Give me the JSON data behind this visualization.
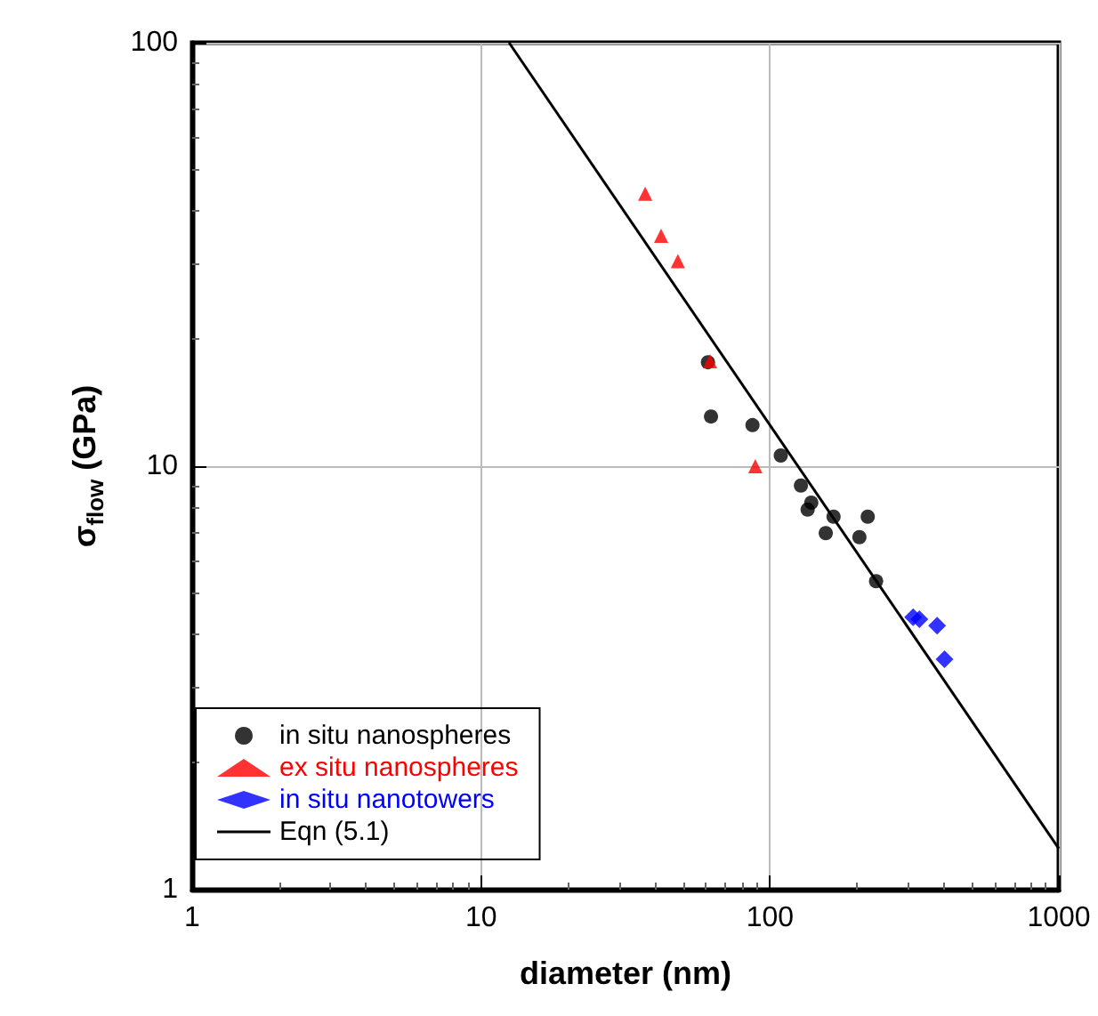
{
  "chart_data": {
    "type": "scatter",
    "xlabel": "diameter (nm)",
    "ylabel": "σ$_{flow}$ (GPa)",
    "log": "xy",
    "grid": true,
    "legend": "bottom left",
    "xlim": [
      1,
      1000
    ],
    "xticks": [
      1,
      10,
      100,
      1000
    ],
    "ylim": [
      1,
      100
    ],
    "yticks": [
      1,
      10,
      100
    ],
    "series": [
      {
        "name": "in situ nanospheres",
        "color": "#000000",
        "marker": "circle",
        "x": [
          61,
          62.5,
          87,
          109,
          128,
          135,
          139,
          156,
          166,
          204,
          218,
          233
        ],
        "values": [
          17.6,
          13.1,
          12.5,
          10.6,
          9.0,
          7.9,
          8.2,
          6.95,
          7.6,
          6.8,
          7.6,
          5.35
        ]
      },
      {
        "name": "ex situ nanospheres",
        "color": "#ff0000",
        "marker": "triangle",
        "x": [
          37,
          42,
          48,
          62,
          89
        ],
        "values": [
          44,
          35,
          30.5,
          17.7,
          10
        ]
      },
      {
        "name": "in situ nanotowers",
        "color": "#0000ff",
        "marker": "diamond",
        "x": [
          313,
          329,
          379,
          402
        ],
        "values": [
          4.4,
          4.35,
          4.2,
          3.5
        ]
      },
      {
        "name": "Eqn (5.1)",
        "type": "line",
        "color": "#000000",
        "marker": "none",
        "x": [
          12.5,
          1000
        ],
        "values": [
          100,
          1.25
        ]
      }
    ]
  }
}
